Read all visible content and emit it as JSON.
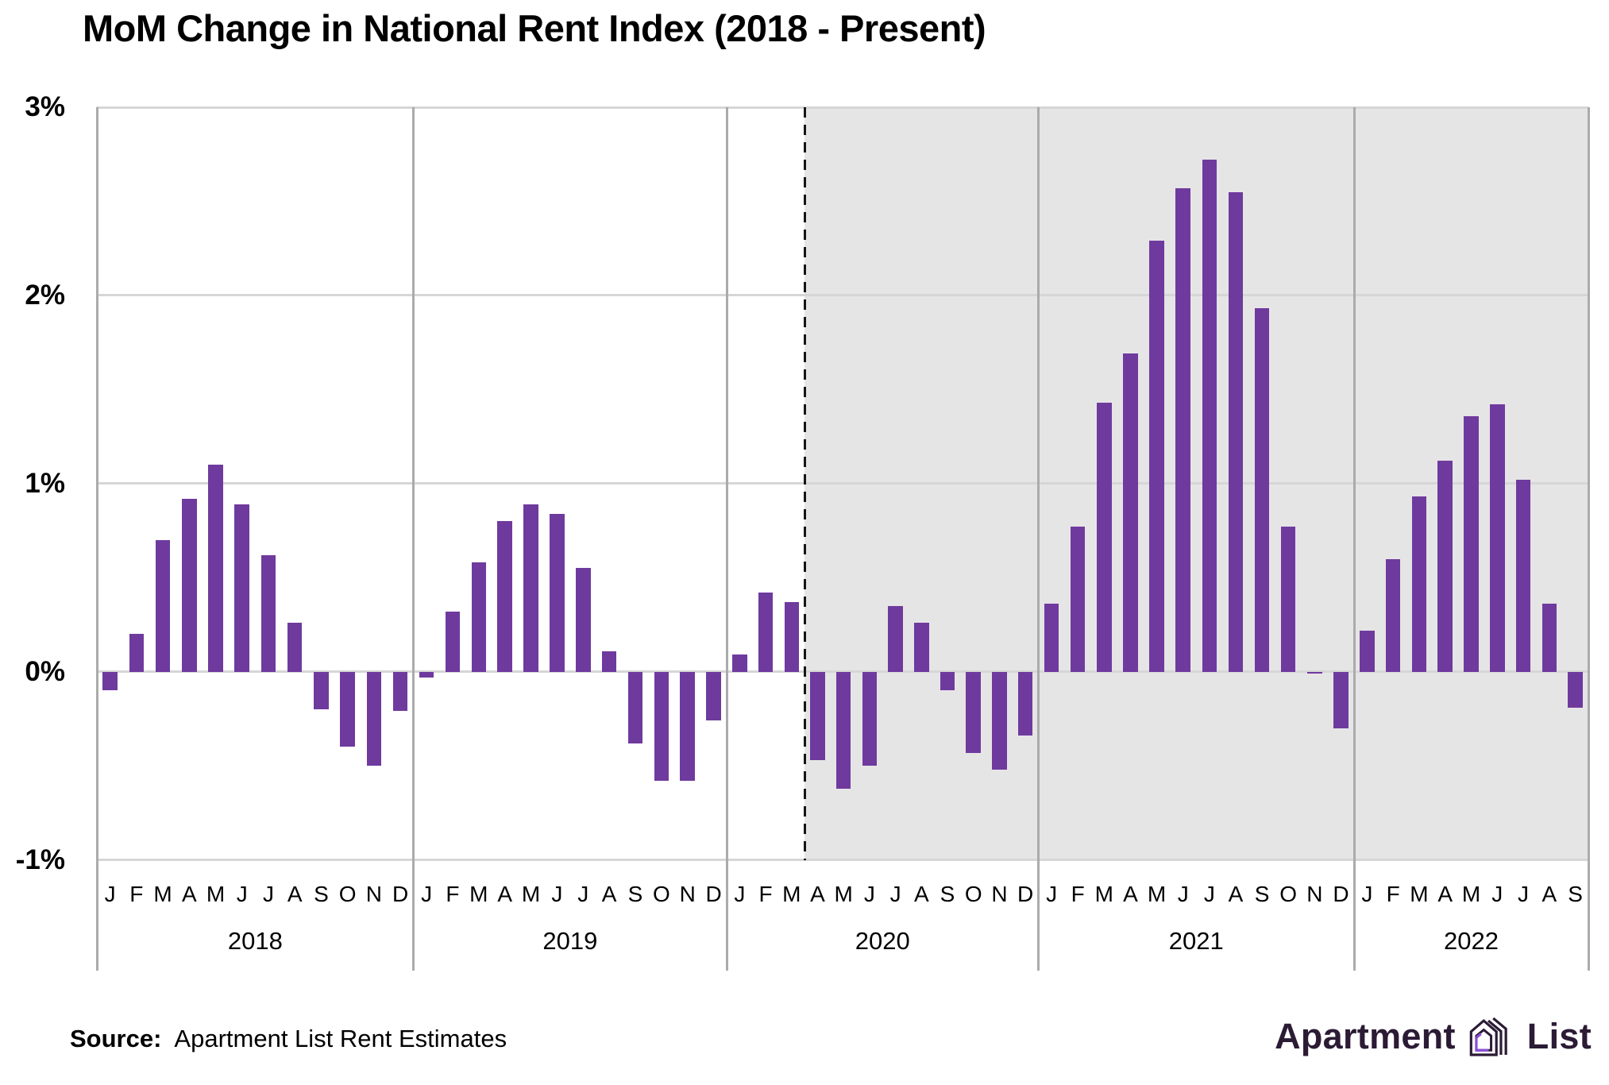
{
  "title": "MoM Change in National Rent Index (2018 - Present)",
  "source": {
    "label": "Source:",
    "text": "Apartment List Rent Estimates"
  },
  "logo": {
    "part1": "Apartment",
    "part2": "List"
  },
  "colors": {
    "bar": "#6f3a9e",
    "shading": "#e6e5e6",
    "gridline": "#d6d6d6",
    "divider": "#ababab",
    "dashed": "#161616",
    "text": "#000000",
    "logo_text": "#2b1b35",
    "logo_accent": "#8b4fd8"
  },
  "chart_data": {
    "type": "bar",
    "title": "MoM Change in National Rent Index (2018 - Present)",
    "unit": "percent month-over-month",
    "ylim": [
      -1,
      3
    ],
    "grid": true,
    "y_ticks": [
      "3%",
      "2%",
      "1%",
      "0%",
      "-1%"
    ],
    "y_tick_values": [
      3,
      2,
      1,
      0,
      -1
    ],
    "month_letters": [
      "J",
      "F",
      "M",
      "A",
      "M",
      "J",
      "J",
      "A",
      "S",
      "O",
      "N",
      "D"
    ],
    "shaded_region": {
      "start_year": "2020",
      "start_month_index": 3,
      "style": "gray fill from dashed line to right edge"
    },
    "years": [
      {
        "year": "2018",
        "values": [
          -0.1,
          0.2,
          0.7,
          0.92,
          1.1,
          0.89,
          0.62,
          0.26,
          -0.2,
          -0.4,
          -0.5,
          -0.21
        ]
      },
      {
        "year": "2019",
        "values": [
          -0.03,
          0.32,
          0.58,
          0.8,
          0.89,
          0.84,
          0.55,
          0.11,
          -0.38,
          -0.58,
          -0.58,
          -0.26
        ]
      },
      {
        "year": "2020",
        "values": [
          0.09,
          0.42,
          0.37,
          -0.47,
          -0.62,
          -0.5,
          0.35,
          0.26,
          -0.1,
          -0.43,
          -0.52,
          -0.34
        ]
      },
      {
        "year": "2021",
        "values": [
          0.36,
          0.77,
          1.43,
          1.69,
          2.29,
          2.57,
          2.72,
          2.55,
          1.93,
          0.77,
          -0.01,
          -0.3
        ]
      },
      {
        "year": "2022",
        "values": [
          0.22,
          0.6,
          0.93,
          1.12,
          1.36,
          1.42,
          1.02,
          0.36,
          -0.19
        ]
      }
    ]
  }
}
